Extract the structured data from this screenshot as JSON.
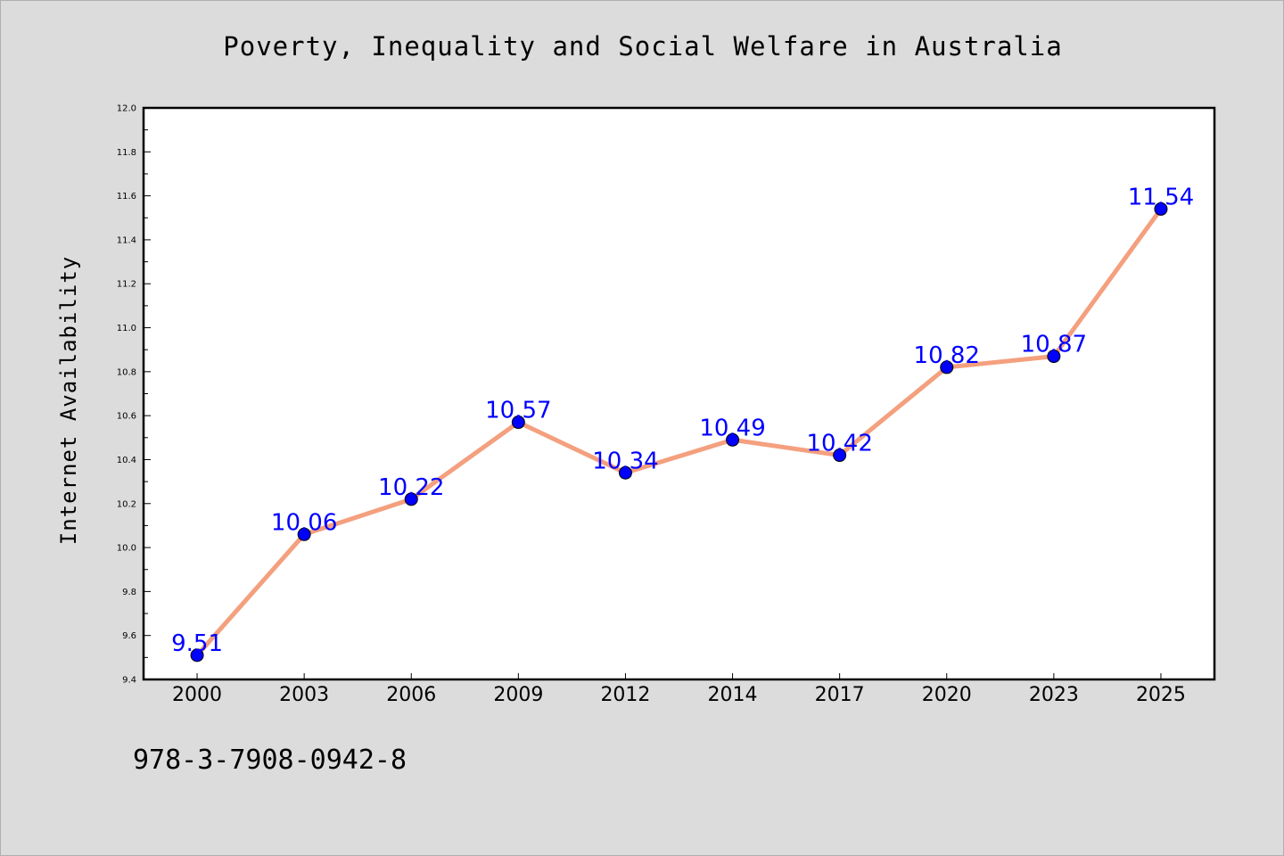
{
  "chart_data": {
    "type": "line",
    "title": "Poverty, Inequality and Social Welfare in Australia",
    "xlabel": "",
    "ylabel": "Internet Availability",
    "categories": [
      "2000",
      "2003",
      "2006",
      "2009",
      "2012",
      "2014",
      "2017",
      "2020",
      "2023",
      "2025"
    ],
    "values": [
      9.51,
      10.06,
      10.22,
      10.57,
      10.34,
      10.49,
      10.42,
      10.82,
      10.87,
      11.54
    ],
    "data_labels": [
      "9.51",
      "10.06",
      "10.22",
      "10.57",
      "10.34",
      "10.49",
      "10.42",
      "10.82",
      "10.87",
      "11.54"
    ],
    "ylim": [
      9.4,
      12.0
    ],
    "y_ticks": [
      "9.4",
      "9.6",
      "9.8",
      "10.0",
      "10.2",
      "10.4",
      "10.6",
      "10.8",
      "11.0",
      "11.2",
      "11.4",
      "11.6",
      "11.8",
      "12.0"
    ],
    "grid": false,
    "legend": "none",
    "colors": {
      "line": "#f4a07e",
      "marker": "#0000ff",
      "data_label": "#0000ff",
      "plot_background": "#ffffff",
      "figure_background": "#dcdcdc"
    }
  },
  "footer": {
    "isbn": "978-3-7908-0942-8"
  }
}
